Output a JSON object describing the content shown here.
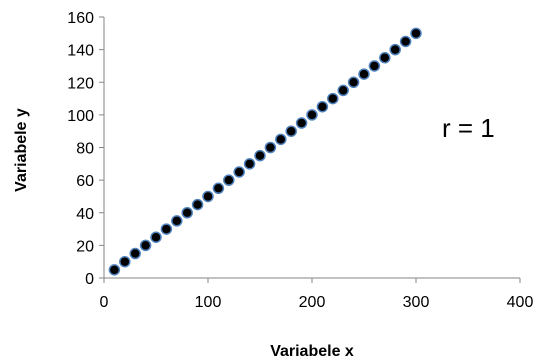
{
  "chart_data": {
    "type": "scatter",
    "title": "",
    "xlabel": "Variabele x",
    "ylabel": "Variabele y",
    "xlim": [
      0,
      400
    ],
    "ylim": [
      0,
      160
    ],
    "x_ticks": [
      0,
      100,
      200,
      300,
      400
    ],
    "y_ticks": [
      0,
      20,
      40,
      60,
      80,
      100,
      120,
      140,
      160
    ],
    "grid": false,
    "legend": "none",
    "marker_fill": "#000000",
    "marker_stroke": "#4f81bd",
    "annotations": [
      {
        "text": "r = 1",
        "x": 325,
        "y": 92
      }
    ],
    "series": [
      {
        "x": [
          10,
          20,
          30,
          40,
          50,
          60,
          70,
          80,
          90,
          100,
          110,
          120,
          130,
          140,
          150,
          160,
          170,
          180,
          190,
          200,
          210,
          220,
          230,
          240,
          250,
          260,
          270,
          280,
          290,
          300
        ],
        "y": [
          5,
          10,
          15,
          20,
          25,
          30,
          35,
          40,
          45,
          50,
          55,
          60,
          65,
          70,
          75,
          80,
          85,
          90,
          95,
          100,
          105,
          110,
          115,
          120,
          125,
          130,
          135,
          140,
          145,
          150
        ]
      }
    ]
  }
}
